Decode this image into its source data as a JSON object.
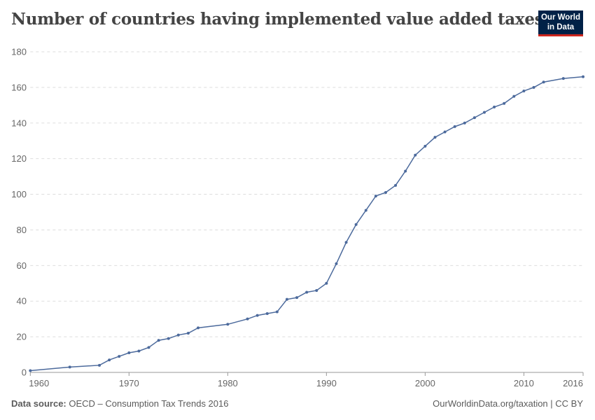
{
  "title": "Number of countries having implemented value added taxes",
  "logo": {
    "line1": "Our World",
    "line2": "in Data"
  },
  "footer": {
    "source_label": "Data source:",
    "source": "OECD – Consumption Tax Trends 2016",
    "link": "OurWorldinData.org/taxation | CC BY"
  },
  "colors": {
    "line": "#4c6a9c",
    "logo_bg": "#002147",
    "logo_accent": "#ce261e"
  },
  "chart_data": {
    "type": "line",
    "title": "Number of countries having implemented value added taxes",
    "xlim": [
      1960,
      2016
    ],
    "ylim": [
      0,
      180
    ],
    "x_ticks": [
      "1960",
      "1970",
      "1980",
      "1990",
      "2000",
      "2010",
      "2016"
    ],
    "y_ticks": [
      "0",
      "20",
      "40",
      "60",
      "80",
      "100",
      "120",
      "140",
      "160",
      "180"
    ],
    "grid": "horizontal dashed",
    "x": [
      1960,
      1964,
      1967,
      1968,
      1969,
      1970,
      1971,
      1972,
      1973,
      1974,
      1975,
      1976,
      1977,
      1980,
      1982,
      1983,
      1984,
      1985,
      1986,
      1987,
      1988,
      1989,
      1990,
      1991,
      1992,
      1993,
      1994,
      1995,
      1996,
      1997,
      1998,
      1999,
      2000,
      2001,
      2002,
      2003,
      2004,
      2005,
      2006,
      2007,
      2008,
      2009,
      2010,
      2011,
      2012,
      2014,
      2016
    ],
    "y": [
      1,
      3,
      4,
      7,
      9,
      11,
      12,
      14,
      18,
      19,
      21,
      22,
      25,
      27,
      30,
      32,
      33,
      34,
      41,
      42,
      45,
      46,
      50,
      61,
      73,
      83,
      91,
      99,
      101,
      105,
      113,
      122,
      127,
      132,
      135,
      138,
      140,
      143,
      146,
      149,
      151,
      155,
      158,
      160,
      163,
      165,
      166
    ]
  }
}
